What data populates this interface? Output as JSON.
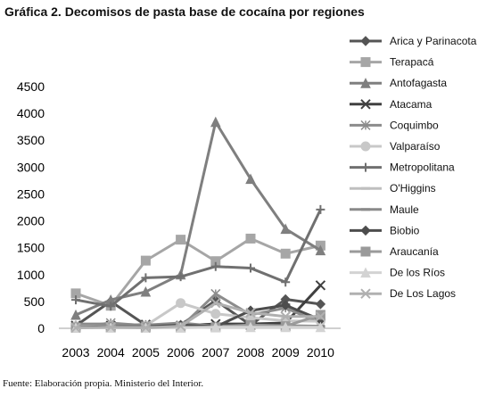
{
  "chart_data": {
    "type": "line",
    "title": "Gráfica 2. Decomisos de pasta base de cocaína por regiones",
    "source": "Fuente: Elaboración propia. Ministerio del Interior.",
    "categories": [
      "2003",
      "2004",
      "2005",
      "2006",
      "2007",
      "2008",
      "2009",
      "2010"
    ],
    "y_ticks": [
      "0",
      "500",
      "1000",
      "1500",
      "2000",
      "2500",
      "3000",
      "3500",
      "4000",
      "4500"
    ],
    "ylim": [
      0,
      4500
    ],
    "legend_position": "right",
    "grid": false,
    "series": [
      {
        "name": "Arica y Parinacota",
        "marker": "diamond",
        "color": "#555555",
        "values": [
          50,
          500,
          60,
          60,
          520,
          60,
          540,
          450
        ]
      },
      {
        "name": "Terapacá",
        "marker": "square",
        "color": "#a6a6a6",
        "values": [
          650,
          420,
          1260,
          1650,
          1250,
          1670,
          1390,
          1540
        ]
      },
      {
        "name": "Antofagasta",
        "marker": "triangle",
        "color": "#7f7f7f",
        "values": [
          250,
          530,
          680,
          1000,
          3840,
          2780,
          1850,
          1450
        ]
      },
      {
        "name": "Atacama",
        "marker": "x",
        "color": "#404040",
        "values": [
          50,
          50,
          70,
          50,
          80,
          80,
          100,
          800
        ]
      },
      {
        "name": "Coquimbo",
        "marker": "asterisk",
        "color": "#8c8c8c",
        "values": [
          20,
          100,
          50,
          20,
          640,
          250,
          380,
          100
        ]
      },
      {
        "name": "Valparaíso",
        "marker": "circle",
        "color": "#c8c8c8",
        "values": [
          40,
          40,
          50,
          470,
          270,
          200,
          140,
          130
        ]
      },
      {
        "name": "Metropolitana",
        "marker": "plus",
        "color": "#707070",
        "values": [
          530,
          410,
          940,
          960,
          1150,
          1120,
          860,
          2210
        ]
      },
      {
        "name": "O'Higgins",
        "marker": "dash",
        "color": "#bfbfbf",
        "values": [
          10,
          10,
          10,
          20,
          30,
          30,
          30,
          30
        ]
      },
      {
        "name": "Maule",
        "marker": "dash",
        "color": "#8a8a8a",
        "values": [
          80,
          80,
          60,
          100,
          40,
          60,
          50,
          40
        ]
      },
      {
        "name": "Biobio",
        "marker": "diamond",
        "color": "#4d4d4d",
        "values": [
          20,
          30,
          30,
          60,
          30,
          330,
          430,
          160
        ]
      },
      {
        "name": "Araucanía",
        "marker": "square",
        "color": "#9a9a9a",
        "values": [
          10,
          20,
          20,
          20,
          20,
          60,
          40,
          250
        ]
      },
      {
        "name": "De los Ríos",
        "marker": "triangle",
        "color": "#d3d3d3",
        "values": [
          10,
          10,
          10,
          10,
          20,
          20,
          20,
          20
        ]
      },
      {
        "name": "De Los Lagos",
        "marker": "x",
        "color": "#b0b0b0",
        "values": [
          10,
          20,
          10,
          40,
          470,
          290,
          220,
          220
        ]
      }
    ]
  }
}
